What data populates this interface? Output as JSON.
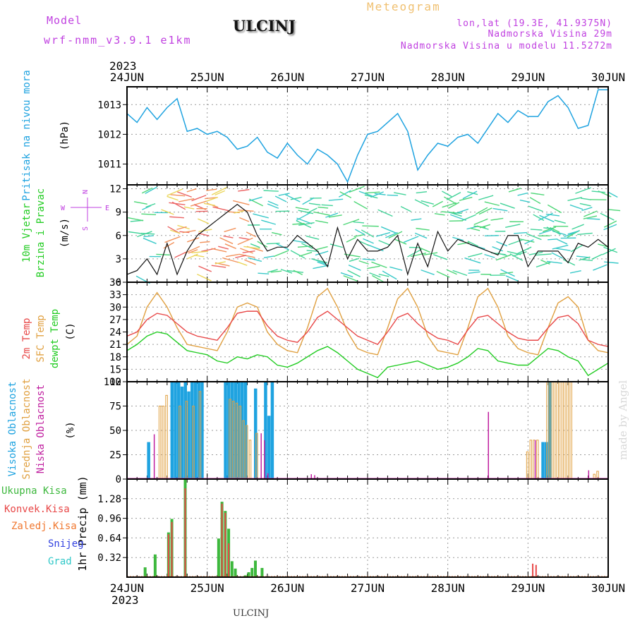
{
  "header": {
    "model_label": "Model",
    "model_name": "wrf-nmm_v3.9.1 e1km",
    "station": "ULCINJ",
    "meteogram": "Meteogram",
    "lonlat": "lon,lat (19.3E, 41.9375N)",
    "altitude": "Nadmorska Visina 29m",
    "model_altitude": "Nadmorska Visina u modelu 11.5272m",
    "footer_station": "ULCINJ",
    "credit": "made by Angel"
  },
  "colors": {
    "pressure": "#1fa3e0",
    "wind_green": "#22cc22",
    "temp2m": "#e84848",
    "sfc": "#e0a040",
    "dewpt": "#22cc22",
    "high": "#1fa3e0",
    "mid": "#e0a040",
    "low": "#c020a0",
    "total_rain": "#3db83d",
    "conv": "#e84848",
    "frozen": "#f07830",
    "snow": "#3040e0",
    "hail": "#30c8c8",
    "purple": "#c040e0"
  },
  "chart_data": [
    {
      "type": "line",
      "panel": "pressure",
      "ylabel_lines": [
        "Pritisak na nivou mora",
        "(hPa)"
      ],
      "ylim": [
        1010.3,
        1013.6
      ],
      "yticks": [
        1011,
        1012,
        1013
      ],
      "x_hours": [
        0,
        3,
        6,
        9,
        12,
        15,
        18,
        21,
        24,
        27,
        30,
        33,
        36,
        39,
        42,
        45,
        48,
        51,
        54,
        57,
        60,
        63,
        66,
        69,
        72,
        75,
        78,
        81,
        84,
        87,
        90,
        93,
        96,
        99,
        102,
        105,
        108,
        111,
        114,
        117,
        120,
        123,
        126,
        129,
        132,
        135,
        138,
        141,
        144
      ],
      "series": [
        {
          "values": [
            1012.7,
            1012.4,
            1012.9,
            1012.5,
            1012.9,
            1013.2,
            1012.1,
            1012.2,
            1012.0,
            1012.1,
            1011.9,
            1011.5,
            1011.6,
            1011.9,
            1011.4,
            1011.2,
            1011.7,
            1011.3,
            1011.0,
            1011.5,
            1011.3,
            1011.0,
            1010.4,
            1011.3,
            1012.0,
            1012.1,
            1012.4,
            1012.7,
            1012.1,
            1010.8,
            1011.3,
            1011.7,
            1011.6,
            1011.9,
            1012.0,
            1011.7,
            1012.2,
            1012.7,
            1012.4,
            1012.8,
            1012.6,
            1012.6,
            1013.1,
            1013.3,
            1012.9,
            1012.2,
            1012.3,
            1013.5,
            1013.5
          ]
        }
      ]
    },
    {
      "type": "line",
      "panel": "wind",
      "ylabel_lines": [
        "10m Vjetar",
        "Brzina i Pravac",
        "(m/s)"
      ],
      "compass": {
        "n": "N",
        "s": "S",
        "e": "E",
        "w": "W"
      },
      "ylim": [
        0,
        12.5
      ],
      "yticks": [
        0,
        3,
        6,
        9,
        12
      ],
      "x_hours": [
        0,
        3,
        6,
        9,
        12,
        15,
        18,
        21,
        24,
        27,
        30,
        33,
        36,
        39,
        42,
        45,
        48,
        51,
        54,
        57,
        60,
        63,
        66,
        69,
        72,
        75,
        78,
        81,
        84,
        87,
        90,
        93,
        96,
        99,
        102,
        105,
        108,
        111,
        114,
        117,
        120,
        123,
        126,
        129,
        132,
        135,
        138,
        141,
        144
      ],
      "series": [
        {
          "values": [
            1.0,
            1.5,
            3.0,
            1.0,
            5.0,
            1.0,
            4.0,
            6.0,
            7.0,
            8.0,
            9.0,
            10.0,
            9.0,
            6.0,
            4.0,
            4.5,
            4.5,
            6.0,
            5.0,
            4.0,
            2.0,
            7.0,
            3.0,
            5.5,
            4.0,
            4.0,
            4.5,
            6.0,
            1.0,
            5.0,
            2.0,
            6.5,
            4.0,
            5.5,
            5.0,
            4.5,
            4.0,
            3.5,
            6.0,
            6.0,
            2.0,
            4.0,
            4.0,
            4.0,
            2.5,
            5.0,
            4.5,
            5.5,
            4.5
          ]
        }
      ]
    },
    {
      "type": "line",
      "panel": "temperature",
      "ylabel_lines": [
        "2m Temp",
        "SFC Temp",
        "dewpt Temp",
        "(C)"
      ],
      "ylim": [
        12,
        36
      ],
      "yticks": [
        12,
        15,
        18,
        21,
        24,
        27,
        30,
        33,
        36
      ],
      "x_hours": [
        0,
        3,
        6,
        9,
        12,
        15,
        18,
        21,
        24,
        27,
        30,
        33,
        36,
        39,
        42,
        45,
        48,
        51,
        54,
        57,
        60,
        63,
        66,
        69,
        72,
        75,
        78,
        81,
        84,
        87,
        90,
        93,
        96,
        99,
        102,
        105,
        108,
        111,
        114,
        117,
        120,
        123,
        126,
        129,
        132,
        135,
        138,
        141,
        144
      ],
      "series": [
        {
          "values": [
            23.0,
            24.0,
            27.0,
            28.5,
            28.0,
            26.0,
            24.0,
            23.0,
            22.5,
            22.0,
            25.0,
            28.5,
            29.0,
            29.0,
            25.5,
            23.0,
            22.0,
            21.5,
            24.0,
            27.5,
            29.0,
            27.0,
            25.0,
            23.0,
            22.0,
            21.0,
            24.0,
            27.5,
            28.5,
            26.0,
            24.0,
            22.5,
            22.0,
            21.0,
            24.5,
            27.5,
            28.0,
            26.0,
            24.0,
            22.5,
            22.0,
            22.0,
            25.0,
            27.5,
            28.0,
            26.0,
            22.0,
            21.0,
            20.5
          ]
        },
        {
          "values": [
            21.0,
            23.0,
            30.0,
            33.5,
            30.0,
            25.0,
            21.0,
            20.5,
            20.0,
            19.5,
            24.0,
            30.0,
            31.0,
            30.0,
            24.0,
            21.0,
            19.5,
            19.0,
            25.0,
            32.5,
            34.5,
            30.0,
            24.0,
            20.0,
            19.0,
            18.5,
            25.0,
            32.0,
            34.5,
            30.0,
            23.0,
            19.5,
            19.0,
            18.5,
            25.0,
            32.5,
            34.5,
            30.0,
            23.0,
            20.0,
            19.0,
            18.5,
            25.0,
            31.0,
            32.5,
            30.0,
            22.0,
            19.5,
            19.0
          ]
        },
        {
          "values": [
            19.5,
            21.0,
            23.0,
            24.0,
            23.5,
            21.5,
            19.5,
            19.0,
            18.5,
            17.0,
            16.5,
            18.0,
            17.5,
            18.5,
            18.0,
            16.0,
            15.5,
            16.5,
            18.0,
            19.5,
            20.5,
            19.0,
            17.0,
            15.0,
            14.0,
            13.0,
            15.5,
            16.0,
            16.5,
            17.0,
            16.0,
            15.0,
            15.5,
            16.5,
            18.0,
            20.0,
            19.5,
            17.0,
            16.5,
            16.0,
            16.0,
            18.0,
            20.0,
            19.5,
            18.0,
            17.0,
            13.5,
            15.0,
            16.5
          ]
        }
      ]
    },
    {
      "type": "bar",
      "panel": "cloud",
      "ylabel_lines": [
        "Visoka Oblacnost",
        "Srednja Oblacnost",
        "Niska Oblacnost",
        "(%)"
      ],
      "ylim": [
        0,
        100
      ],
      "yticks": [
        0,
        25,
        50,
        75,
        100
      ],
      "series": [
        {
          "name": "Visoka Oblacnost",
          "x_hours": [
            6,
            13,
            14,
            15,
            16,
            17,
            18,
            19,
            20,
            21,
            22,
            29,
            30,
            31,
            32,
            33,
            34,
            35,
            38,
            41,
            42,
            43,
            124,
            125,
            126
          ],
          "values": [
            38,
            100,
            100,
            100,
            95,
            100,
            90,
            100,
            100,
            100,
            100,
            100,
            100,
            100,
            100,
            100,
            100,
            100,
            93,
            100,
            65,
            100,
            38,
            38,
            100
          ]
        },
        {
          "name": "Srednja Oblacnost",
          "x_hours": [
            10,
            11,
            12,
            16,
            18,
            20,
            22,
            31,
            32,
            33,
            34,
            35,
            36,
            37,
            39,
            120,
            121,
            122,
            123,
            126,
            127,
            128,
            129,
            130,
            131,
            132,
            133,
            140,
            141
          ],
          "values": [
            75,
            75,
            86,
            75,
            80,
            75,
            90,
            82,
            80,
            78,
            75,
            60,
            55,
            40,
            47,
            28,
            40,
            40,
            40,
            100,
            100,
            100,
            100,
            100,
            100,
            100,
            100,
            5,
            8
          ]
        },
        {
          "name": "Niska Oblacnost",
          "x_hours": [
            8,
            40,
            41,
            42,
            55,
            56,
            108,
            122,
            138
          ],
          "values": [
            46,
            47,
            40,
            6,
            5,
            4,
            69,
            40,
            9
          ]
        }
      ]
    },
    {
      "type": "bar",
      "panel": "precipitation",
      "ylabel_lines": [
        "1hr Precip (mm)"
      ],
      "legend": [
        "Ukupna Kisa",
        "Konvek.Kisa",
        "Zaledj.Kisa",
        "Snijeg",
        "Grad"
      ],
      "ylim": [
        0,
        1.6
      ],
      "yticks": [
        0.32,
        0.64,
        0.96,
        1.28
      ],
      "series": [
        {
          "name": "Ukupna Kisa",
          "x_hours": [
            5,
            8,
            12,
            13,
            17,
            27,
            28,
            29,
            30,
            31,
            32,
            35,
            36,
            37,
            38,
            40
          ],
          "values": [
            0.16,
            0.37,
            0.73,
            0.95,
            1.6,
            0.63,
            1.23,
            1.08,
            0.79,
            0.26,
            0.14,
            0.03,
            0.08,
            0.15,
            0.27,
            0.15
          ]
        },
        {
          "name": "Konvek.Kisa",
          "x_hours": [
            12,
            13,
            17,
            28,
            29,
            30,
            121,
            122
          ],
          "values": [
            0.7,
            0.9,
            1.45,
            1.2,
            1.05,
            0.55,
            0.22,
            0.2
          ]
        }
      ]
    }
  ],
  "x_axis": {
    "year_label": "2023",
    "labels": [
      "24JUN",
      "25JUN",
      "26JUN",
      "27JUN",
      "28JUN",
      "29JUN",
      "30JUN"
    ]
  }
}
